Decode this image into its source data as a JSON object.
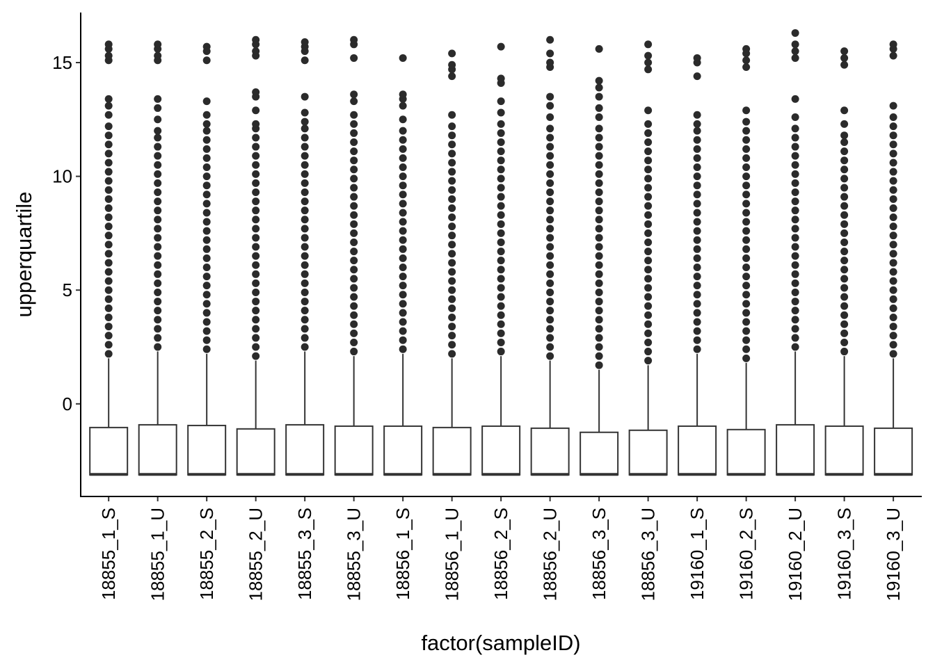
{
  "chart_data": {
    "type": "box",
    "xlabel": "factor(sampleID)",
    "ylabel": "upperquartile",
    "categories": [
      "18855_1_S",
      "18855_1_U",
      "18855_2_S",
      "18855_2_U",
      "18855_3_S",
      "18855_3_U",
      "18856_1_S",
      "18856_1_U",
      "18856_2_S",
      "18856_2_U",
      "18856_3_S",
      "18856_3_U",
      "19160_1_S",
      "19160_2_S",
      "19160_2_U",
      "19160_3_S",
      "19160_3_U"
    ],
    "ylim": [
      -4.07,
      17.2
    ],
    "yticks": [
      0,
      5,
      10,
      15
    ],
    "box_color": "#333333",
    "box_fill": "#ffffff",
    "outlier_color": "#2b2b2b",
    "boxes": [
      {
        "q1": -3.12,
        "median": -3.1,
        "q3": -1.04,
        "whishi": 2.0,
        "outliers": [
          2.2,
          2.6,
          3,
          3.4,
          3.8,
          4.2,
          4.6,
          5,
          5.4,
          5.8,
          6.2,
          6.6,
          7,
          7.4,
          7.8,
          8.2,
          8.6,
          9,
          9.4,
          9.8,
          10.2,
          10.6,
          11,
          11.4,
          11.8,
          12.2,
          12.7,
          13.1,
          13.4,
          15.1,
          15.3,
          15.6,
          15.8
        ]
      },
      {
        "q1": -3.12,
        "median": -3.1,
        "q3": -0.92,
        "whishi": 2.3,
        "outliers": [
          2.5,
          2.9,
          3.3,
          3.7,
          4.1,
          4.5,
          4.9,
          5.3,
          5.7,
          6.1,
          6.5,
          6.9,
          7.3,
          7.7,
          8.1,
          8.5,
          8.9,
          9.3,
          9.7,
          10.1,
          10.5,
          10.9,
          11.3,
          11.7,
          12.0,
          12.5,
          13.0,
          13.4,
          15.1,
          15.3,
          15.6,
          15.8
        ]
      },
      {
        "q1": -3.12,
        "median": -3.1,
        "q3": -0.95,
        "whishi": 2.2,
        "outliers": [
          2.4,
          2.8,
          3.2,
          3.6,
          4,
          4.4,
          4.8,
          5.2,
          5.6,
          6,
          6.4,
          6.8,
          7.2,
          7.6,
          8,
          8.4,
          8.8,
          9.2,
          9.6,
          10,
          10.4,
          10.8,
          11.2,
          11.6,
          12.0,
          12.3,
          12.7,
          13.3,
          15.1,
          15.5,
          15.7
        ]
      },
      {
        "q1": -3.12,
        "median": -3.1,
        "q3": -1.1,
        "whishi": 1.9,
        "outliers": [
          2.1,
          2.5,
          2.9,
          3.3,
          3.7,
          4.1,
          4.5,
          4.9,
          5.3,
          5.7,
          6.1,
          6.5,
          6.9,
          7.3,
          7.7,
          8.1,
          8.5,
          8.9,
          9.3,
          9.7,
          10.1,
          10.5,
          10.9,
          11.3,
          11.7,
          12.1,
          12.3,
          12.9,
          13.5,
          13.7,
          15.3,
          15.5,
          15.8,
          16
        ]
      },
      {
        "q1": -3.12,
        "median": -3.1,
        "q3": -0.92,
        "whishi": 2.3,
        "outliers": [
          2.5,
          2.9,
          3.3,
          3.7,
          4.1,
          4.5,
          4.9,
          5.3,
          5.7,
          6.1,
          6.5,
          6.9,
          7.3,
          7.7,
          8.1,
          8.5,
          8.9,
          9.3,
          9.7,
          10.1,
          10.5,
          10.9,
          11.3,
          11.7,
          12.1,
          12.4,
          12.8,
          13.5,
          15.1,
          15.5,
          15.7,
          15.9
        ]
      },
      {
        "q1": -3.12,
        "median": -3.1,
        "q3": -0.98,
        "whishi": 2.1,
        "outliers": [
          2.3,
          2.7,
          3.1,
          3.5,
          3.9,
          4.3,
          4.7,
          5.1,
          5.5,
          5.9,
          6.3,
          6.7,
          7.1,
          7.5,
          7.9,
          8.3,
          8.7,
          9.1,
          9.5,
          9.9,
          10.3,
          10.7,
          11.1,
          11.5,
          11.9,
          12.3,
          12.7,
          13.3,
          13.6,
          15.2,
          15.8,
          16
        ]
      },
      {
        "q1": -3.12,
        "median": -3.1,
        "q3": -0.98,
        "whishi": 2.2,
        "outliers": [
          2.4,
          2.8,
          3.2,
          3.6,
          4,
          4.4,
          4.8,
          5.2,
          5.6,
          6,
          6.4,
          6.8,
          7.2,
          7.6,
          8,
          8.4,
          8.8,
          9.2,
          9.6,
          10,
          10.4,
          10.8,
          11.2,
          11.6,
          12.0,
          12.5,
          13.1,
          13.4,
          13.6,
          15.2
        ]
      },
      {
        "q1": -3.12,
        "median": -3.1,
        "q3": -1.04,
        "whishi": 2.0,
        "outliers": [
          2.2,
          2.6,
          3,
          3.4,
          3.8,
          4.2,
          4.6,
          5,
          5.4,
          5.8,
          6.2,
          6.6,
          7,
          7.4,
          7.8,
          8.2,
          8.6,
          9,
          9.4,
          9.8,
          10.2,
          10.6,
          11,
          11.4,
          11.8,
          12.2,
          12.7,
          14.4,
          14.7,
          14.9,
          15.4
        ]
      },
      {
        "q1": -3.12,
        "median": -3.1,
        "q3": -0.98,
        "whishi": 2.1,
        "outliers": [
          2.3,
          2.7,
          3.1,
          3.5,
          3.9,
          4.3,
          4.7,
          5.1,
          5.5,
          5.9,
          6.3,
          6.7,
          7.1,
          7.5,
          7.9,
          8.3,
          8.7,
          9.1,
          9.5,
          9.9,
          10.3,
          10.7,
          11.1,
          11.5,
          11.9,
          12.3,
          12.8,
          13.3,
          14.1,
          14.3,
          15.7
        ]
      },
      {
        "q1": -3.12,
        "median": -3.1,
        "q3": -1.07,
        "whishi": 1.9,
        "outliers": [
          2.1,
          2.5,
          2.9,
          3.3,
          3.7,
          4.1,
          4.5,
          4.9,
          5.3,
          5.7,
          6.1,
          6.5,
          6.9,
          7.3,
          7.7,
          8.1,
          8.5,
          8.9,
          9.3,
          9.7,
          10.1,
          10.5,
          10.9,
          11.3,
          11.7,
          12.1,
          12.6,
          13.1,
          13.5,
          14.8,
          15.0,
          15.4,
          16
        ]
      },
      {
        "q1": -3.12,
        "median": -3.1,
        "q3": -1.25,
        "whishi": 1.5,
        "outliers": [
          1.7,
          2.1,
          2.5,
          2.9,
          3.3,
          3.7,
          4.1,
          4.5,
          4.9,
          5.3,
          5.7,
          6.1,
          6.5,
          6.9,
          7.3,
          7.7,
          8.1,
          8.5,
          8.9,
          9.3,
          9.7,
          10.1,
          10.5,
          10.9,
          11.3,
          11.7,
          12.1,
          12.6,
          13.0,
          13.5,
          13.9,
          14.2,
          15.6
        ]
      },
      {
        "q1": -3.12,
        "median": -3.1,
        "q3": -1.16,
        "whishi": 1.7,
        "outliers": [
          1.9,
          2.3,
          2.7,
          3.1,
          3.5,
          3.9,
          4.3,
          4.7,
          5.1,
          5.5,
          5.9,
          6.3,
          6.7,
          7.1,
          7.5,
          7.9,
          8.3,
          8.7,
          9.1,
          9.5,
          9.9,
          10.3,
          10.7,
          11.1,
          11.5,
          11.9,
          12.3,
          12.9,
          14.7,
          15.0,
          15.3,
          15.8
        ]
      },
      {
        "q1": -3.12,
        "median": -3.1,
        "q3": -0.98,
        "whishi": 2.2,
        "outliers": [
          2.4,
          2.8,
          3.2,
          3.6,
          4,
          4.4,
          4.8,
          5.2,
          5.6,
          6,
          6.4,
          6.8,
          7.2,
          7.6,
          8,
          8.4,
          8.8,
          9.2,
          9.6,
          10,
          10.4,
          10.8,
          11.2,
          11.6,
          12.0,
          12.3,
          12.7,
          14.4,
          15.0,
          15.2
        ]
      },
      {
        "q1": -3.12,
        "median": -3.1,
        "q3": -1.13,
        "whishi": 1.8,
        "outliers": [
          2,
          2.4,
          2.8,
          3.2,
          3.6,
          4,
          4.4,
          4.8,
          5.2,
          5.6,
          6,
          6.4,
          6.8,
          7.2,
          7.6,
          8,
          8.4,
          8.8,
          9.2,
          9.6,
          10,
          10.4,
          10.8,
          11.2,
          11.6,
          12.0,
          12.4,
          12.9,
          14.8,
          15.1,
          15.4,
          15.6
        ]
      },
      {
        "q1": -3.12,
        "median": -3.1,
        "q3": -0.92,
        "whishi": 2.3,
        "outliers": [
          2.5,
          2.9,
          3.3,
          3.7,
          4.1,
          4.5,
          4.9,
          5.3,
          5.7,
          6.1,
          6.5,
          6.9,
          7.3,
          7.7,
          8.1,
          8.5,
          8.9,
          9.3,
          9.7,
          10.1,
          10.5,
          10.9,
          11.3,
          11.7,
          12.1,
          12.6,
          13.4,
          15.2,
          15.5,
          15.8,
          16.3
        ]
      },
      {
        "q1": -3.12,
        "median": -3.1,
        "q3": -0.98,
        "whishi": 2.1,
        "outliers": [
          2.3,
          2.7,
          3.1,
          3.5,
          3.9,
          4.3,
          4.7,
          5.1,
          5.5,
          5.9,
          6.3,
          6.7,
          7.1,
          7.5,
          7.9,
          8.3,
          8.7,
          9.1,
          9.5,
          9.9,
          10.3,
          10.7,
          11.1,
          11.5,
          11.8,
          12.3,
          12.9,
          14.9,
          15.2,
          15.5
        ]
      },
      {
        "q1": -3.12,
        "median": -3.1,
        "q3": -1.07,
        "whishi": 2.0,
        "outliers": [
          2.2,
          2.6,
          3,
          3.4,
          3.8,
          4.2,
          4.6,
          5,
          5.4,
          5.8,
          6.2,
          6.6,
          7,
          7.4,
          7.8,
          8.2,
          8.6,
          9,
          9.4,
          9.8,
          10.2,
          10.6,
          11,
          11.4,
          11.8,
          12.2,
          12.6,
          13.1,
          15.3,
          15.6,
          15.8
        ]
      }
    ]
  }
}
